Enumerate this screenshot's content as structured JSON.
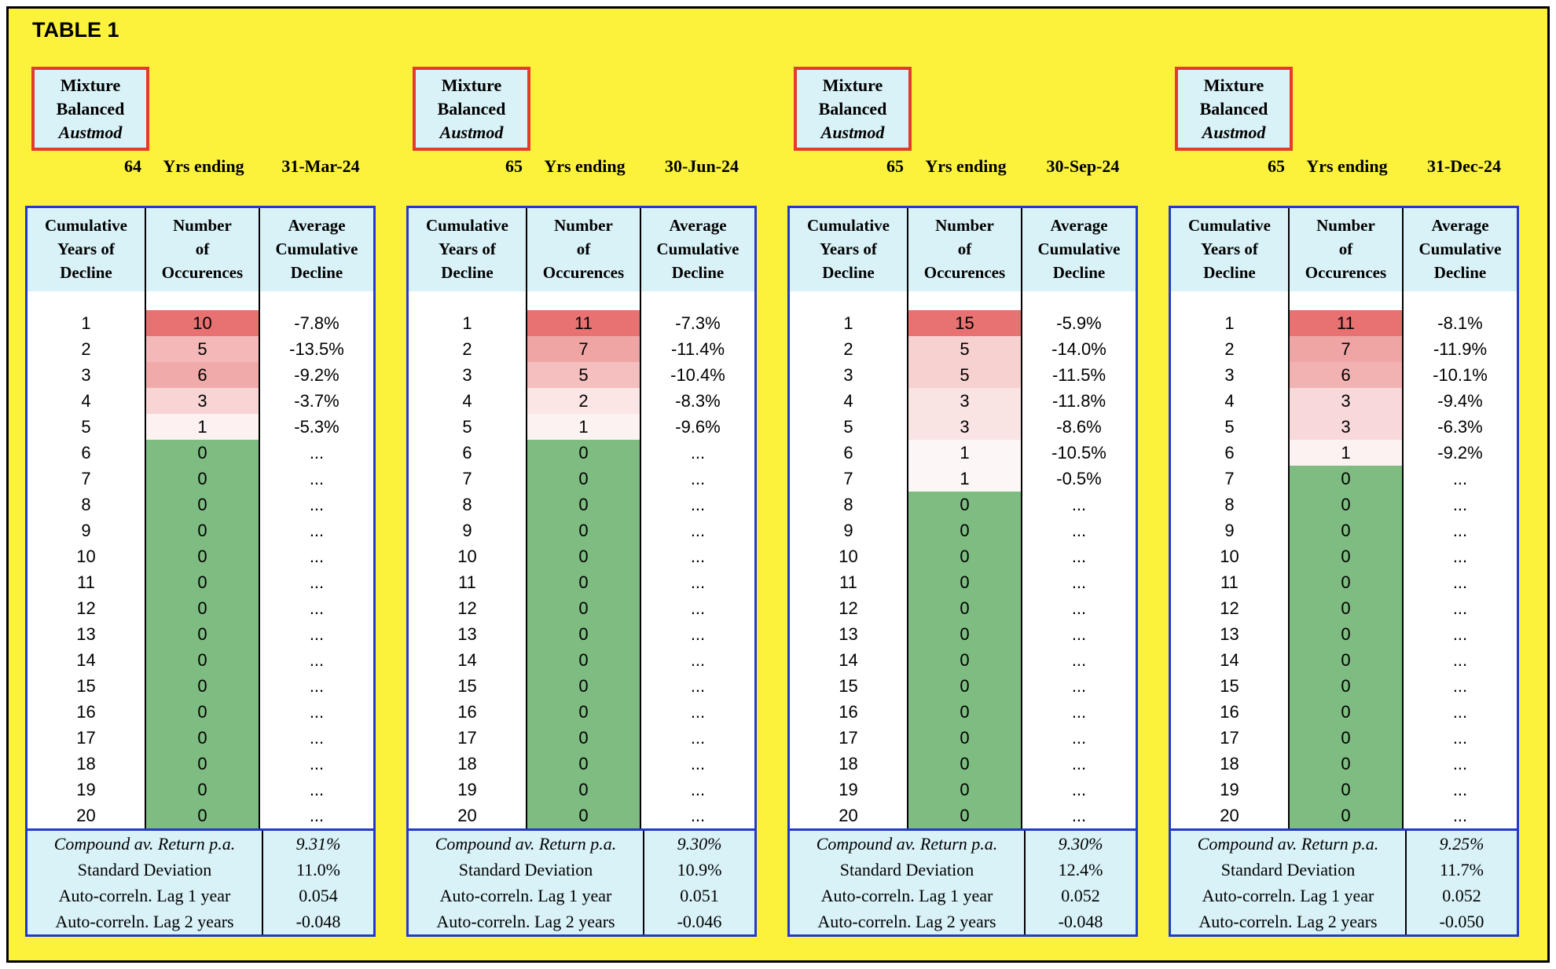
{
  "page": {
    "title": "TABLE 1"
  },
  "colors": {
    "page_bg": "#FCF23C",
    "header_bg": "#D8F2F8",
    "table_border": "#2239CD",
    "fund_box_border": "#E43B2C",
    "occurrence_red_base": "#E87172",
    "zero_green": "#7FBC82",
    "text": "#000000"
  },
  "labels": {
    "fund_lines": [
      "Mixture",
      "Balanced"
    ],
    "fund_italic": "Austmod",
    "yrs_ending": "Yrs ending",
    "col_headers": [
      [
        "Cumulative",
        "Years of",
        "Decline"
      ],
      [
        "Number",
        "of",
        "Occurences"
      ],
      [
        "Average",
        "Cumulative",
        "Decline"
      ]
    ],
    "stats_labels": [
      "Compound av. Return p.a.",
      "Standard Deviation",
      "Auto-correln. Lag 1 year",
      "Auto-correln. Lag 2 years"
    ],
    "ellipsis": "..."
  },
  "year_rows": [
    1,
    2,
    3,
    4,
    5,
    6,
    7,
    8,
    9,
    10,
    11,
    12,
    13,
    14,
    15,
    16,
    17,
    18,
    19,
    20
  ],
  "panels": [
    {
      "years": "64",
      "ending": "31-Mar-24",
      "occurrences": [
        10,
        5,
        6,
        3,
        1,
        0,
        0,
        0,
        0,
        0,
        0,
        0,
        0,
        0,
        0,
        0,
        0,
        0,
        0,
        0
      ],
      "declines": [
        "-7.8%",
        "-13.5%",
        "-9.2%",
        "-3.7%",
        "-5.3%",
        "...",
        "...",
        "...",
        "...",
        "...",
        "...",
        "...",
        "...",
        "...",
        "...",
        "...",
        "...",
        "...",
        "...",
        "..."
      ],
      "stats": [
        "9.31%",
        "11.0%",
        "0.054",
        "-0.048"
      ]
    },
    {
      "years": "65",
      "ending": "30-Jun-24",
      "occurrences": [
        11,
        7,
        5,
        2,
        1,
        0,
        0,
        0,
        0,
        0,
        0,
        0,
        0,
        0,
        0,
        0,
        0,
        0,
        0,
        0
      ],
      "declines": [
        "-7.3%",
        "-11.4%",
        "-10.4%",
        "-8.3%",
        "-9.6%",
        "...",
        "...",
        "...",
        "...",
        "...",
        "...",
        "...",
        "...",
        "...",
        "...",
        "...",
        "...",
        "...",
        "...",
        "..."
      ],
      "stats": [
        "9.30%",
        "10.9%",
        "0.051",
        "-0.046"
      ]
    },
    {
      "years": "65",
      "ending": "30-Sep-24",
      "occurrences": [
        15,
        5,
        5,
        3,
        3,
        1,
        1,
        0,
        0,
        0,
        0,
        0,
        0,
        0,
        0,
        0,
        0,
        0,
        0,
        0
      ],
      "declines": [
        "-5.9%",
        "-14.0%",
        "-11.5%",
        "-11.8%",
        "-8.6%",
        "-10.5%",
        "-0.5%",
        "...",
        "...",
        "...",
        "...",
        "...",
        "...",
        "...",
        "...",
        "...",
        "...",
        "...",
        "...",
        "..."
      ],
      "stats": [
        "9.30%",
        "12.4%",
        "0.052",
        "-0.048"
      ]
    },
    {
      "years": "65",
      "ending": "31-Dec-24",
      "occurrences": [
        11,
        7,
        6,
        3,
        3,
        1,
        0,
        0,
        0,
        0,
        0,
        0,
        0,
        0,
        0,
        0,
        0,
        0,
        0,
        0
      ],
      "declines": [
        "-8.1%",
        "-11.9%",
        "-10.1%",
        "-9.4%",
        "-6.3%",
        "-9.2%",
        "...",
        "...",
        "...",
        "...",
        "...",
        "...",
        "...",
        "...",
        "...",
        "...",
        "...",
        "...",
        "...",
        "..."
      ],
      "stats": [
        "9.25%",
        "11.7%",
        "0.052",
        "-0.050"
      ]
    }
  ]
}
